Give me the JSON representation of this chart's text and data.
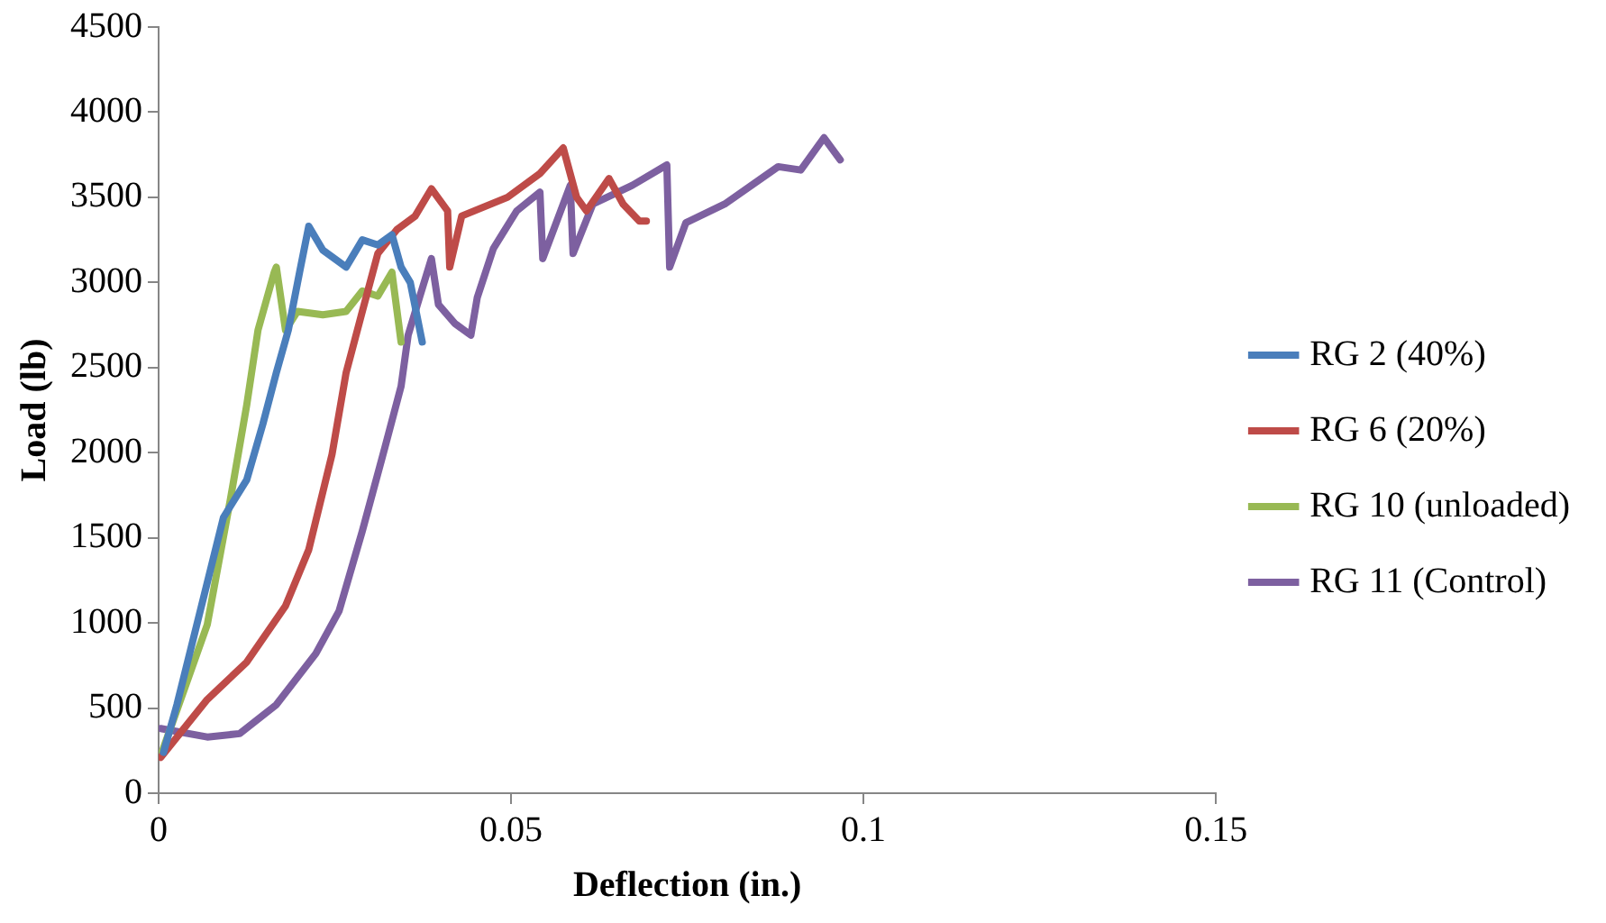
{
  "chart_data": {
    "type": "line",
    "xlabel": "Deflection (in.)",
    "ylabel": "Load (lb)",
    "xlim": [
      0,
      0.15
    ],
    "xticks": [
      0,
      0.05,
      0.1,
      0.15
    ],
    "ylim": [
      0,
      4500
    ],
    "yticks": [
      0,
      500,
      1000,
      1500,
      2000,
      2500,
      3000,
      3500,
      4000,
      4500
    ],
    "grid": false,
    "legend": "right",
    "marker": "none",
    "line_style": "solid",
    "series": [
      {
        "name": "RG 2 (40%)",
        "color": "#4a7ebb",
        "x": [
          0.0007,
          0.0026,
          0.0059,
          0.0092,
          0.0125,
          0.0148,
          0.0167,
          0.0184,
          0.02,
          0.0213,
          0.0233,
          0.0266,
          0.0289,
          0.0311,
          0.0331,
          0.0344,
          0.0357,
          0.0374
        ],
        "values": [
          240,
          520,
          1070,
          1620,
          1840,
          2170,
          2470,
          2720,
          3060,
          3330,
          3190,
          3090,
          3250,
          3220,
          3280,
          3090,
          3000,
          2650
        ]
      },
      {
        "name": "RG 6 (20%)",
        "color": "#be4b48",
        "x": [
          0.0003,
          0.0069,
          0.0125,
          0.018,
          0.0213,
          0.0246,
          0.0266,
          0.0289,
          0.0311,
          0.0338,
          0.0364,
          0.0387,
          0.041,
          0.0413,
          0.043,
          0.0495,
          0.0541,
          0.0574,
          0.0593,
          0.0607,
          0.0639,
          0.0659,
          0.0682,
          0.0692
        ],
        "values": [
          210,
          550,
          770,
          1100,
          1430,
          1990,
          2470,
          2830,
          3170,
          3310,
          3390,
          3550,
          3420,
          3090,
          3390,
          3500,
          3640,
          3790,
          3500,
          3420,
          3610,
          3460,
          3360,
          3360
        ]
      },
      {
        "name": "RG 10 (unloaded)",
        "color": "#98b954",
        "x": [
          0.0003,
          0.0069,
          0.0102,
          0.0125,
          0.0141,
          0.0164,
          0.0167,
          0.018,
          0.0197,
          0.0233,
          0.0266,
          0.0289,
          0.0311,
          0.0331,
          0.0344
        ],
        "values": [
          220,
          990,
          1730,
          2280,
          2720,
          3060,
          3090,
          2720,
          2830,
          2810,
          2830,
          2950,
          2920,
          3060,
          2650
        ]
      },
      {
        "name": "RG 11 (Control)",
        "color": "#7d60a0",
        "x": [
          0.0003,
          0.0069,
          0.0115,
          0.0167,
          0.0223,
          0.0256,
          0.0289,
          0.0321,
          0.0344,
          0.0354,
          0.037,
          0.0387,
          0.0397,
          0.042,
          0.0443,
          0.0452,
          0.0475,
          0.0508,
          0.0541,
          0.0545,
          0.0584,
          0.0588,
          0.0616,
          0.0672,
          0.0721,
          0.0725,
          0.0748,
          0.0803,
          0.0879,
          0.0911,
          0.0944,
          0.0967
        ],
        "values": [
          380,
          330,
          350,
          520,
          820,
          1070,
          1540,
          2030,
          2390,
          2690,
          2910,
          3140,
          2870,
          2760,
          2690,
          2910,
          3200,
          3420,
          3530,
          3140,
          3570,
          3170,
          3460,
          3570,
          3690,
          3090,
          3350,
          3460,
          3680,
          3660,
          3850,
          3720
        ]
      }
    ]
  }
}
